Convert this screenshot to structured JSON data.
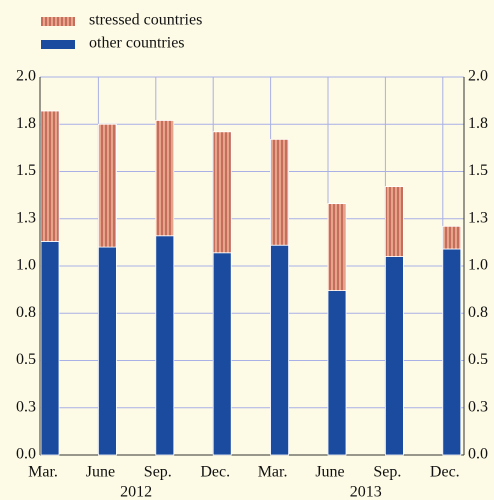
{
  "chart_data": {
    "type": "stacked-bar",
    "categories": [
      "Mar.",
      "June",
      "Sep.",
      "Dec.",
      "Mar.",
      "June",
      "Sep.",
      "Dec."
    ],
    "groups": [
      "2012",
      "2013"
    ],
    "series": [
      {
        "name": "other countries",
        "color": "#1a4b9e",
        "values": [
          1.13,
          1.1,
          1.16,
          1.07,
          1.11,
          0.87,
          1.05,
          1.09
        ]
      },
      {
        "name": "stressed countries",
        "color": "#e8a488",
        "values": [
          0.69,
          0.65,
          0.61,
          0.64,
          0.56,
          0.46,
          0.37,
          0.12
        ]
      }
    ],
    "ylim": [
      0,
      2
    ],
    "yticks": [
      {
        "value": 0,
        "label": "0.0"
      },
      {
        "value": 0.25,
        "label": "0.3"
      },
      {
        "value": 0.5,
        "label": "0.5"
      },
      {
        "value": 0.75,
        "label": "0.8"
      },
      {
        "value": 1,
        "label": "1.0"
      },
      {
        "value": 1.25,
        "label": "1.3"
      },
      {
        "value": 1.5,
        "label": "1.5"
      },
      {
        "value": 1.75,
        "label": "1.8"
      },
      {
        "value": 2,
        "label": "2.0"
      }
    ],
    "grid": true
  }
}
